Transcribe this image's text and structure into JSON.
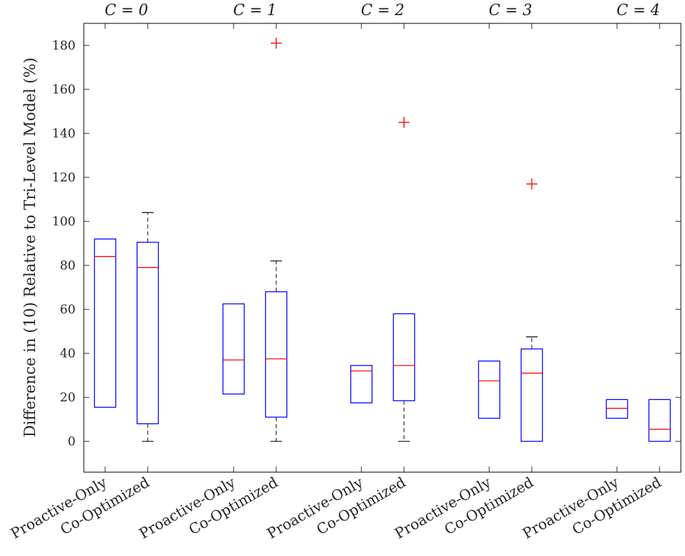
{
  "chart_data": {
    "type": "boxplot",
    "ylabel": "Difference in (10) Relative to Tri-Level Model (%)",
    "xlabel": "",
    "ylim": [
      -14,
      190
    ],
    "yticks": [
      0,
      20,
      40,
      60,
      80,
      100,
      120,
      140,
      160,
      180
    ],
    "groups": [
      "C = 0",
      "C = 1",
      "C = 2",
      "C = 3",
      "C = 4"
    ],
    "series_labels": [
      "Proactive-Only",
      "Co-Optimized"
    ],
    "colors": {
      "box": "#0000ff",
      "median": "#ff0000",
      "whisker": "#000000",
      "outlier": "#ff0000",
      "axis": "#262626"
    },
    "boxes": [
      {
        "group": "C = 0",
        "label": "Proactive-Only",
        "q1": 15.5,
        "median": 84,
        "q3": 92,
        "whisker_low": 15.5,
        "whisker_high": 92,
        "outliers": []
      },
      {
        "group": "C = 0",
        "label": "Co-Optimized",
        "q1": 8,
        "median": 79,
        "q3": 90.5,
        "whisker_low": 0,
        "whisker_high": 104,
        "outliers": []
      },
      {
        "group": "C = 1",
        "label": "Proactive-Only",
        "q1": 21.5,
        "median": 37,
        "q3": 62.5,
        "whisker_low": 21.5,
        "whisker_high": 62.5,
        "outliers": []
      },
      {
        "group": "C = 1",
        "label": "Co-Optimized",
        "q1": 11,
        "median": 37.5,
        "q3": 68,
        "whisker_low": 0,
        "whisker_high": 82,
        "outliers": [
          181
        ]
      },
      {
        "group": "C = 2",
        "label": "Proactive-Only",
        "q1": 17.5,
        "median": 32,
        "q3": 34.5,
        "whisker_low": 17.5,
        "whisker_high": 34.5,
        "outliers": []
      },
      {
        "group": "C = 2",
        "label": "Co-Optimized",
        "q1": 18.5,
        "median": 34.5,
        "q3": 58,
        "whisker_low": 0,
        "whisker_high": 58,
        "outliers": [
          145
        ]
      },
      {
        "group": "C = 3",
        "label": "Proactive-Only",
        "q1": 10.5,
        "median": 27.5,
        "q3": 36.5,
        "whisker_low": 10.5,
        "whisker_high": 36.5,
        "outliers": []
      },
      {
        "group": "C = 3",
        "label": "Co-Optimized",
        "q1": 0,
        "median": 31,
        "q3": 42,
        "whisker_low": 0,
        "whisker_high": 47.5,
        "outliers": [
          117
        ]
      },
      {
        "group": "C = 4",
        "label": "Proactive-Only",
        "q1": 10.5,
        "median": 15,
        "q3": 19,
        "whisker_low": 10.5,
        "whisker_high": 19,
        "outliers": []
      },
      {
        "group": "C = 4",
        "label": "Co-Optimized",
        "q1": 0,
        "median": 5.5,
        "q3": 19,
        "whisker_low": 0,
        "whisker_high": 19,
        "outliers": []
      }
    ]
  }
}
